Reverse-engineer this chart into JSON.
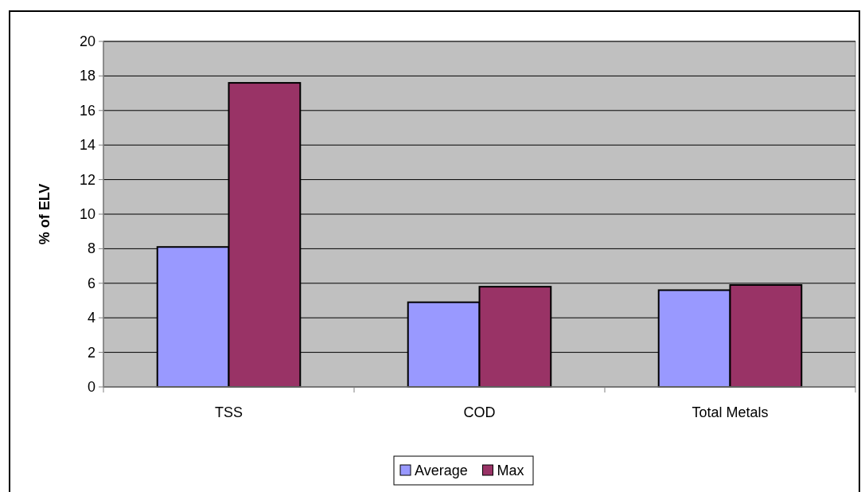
{
  "chart_data": {
    "type": "bar",
    "ylabel": "% of ELV",
    "categories": [
      "TSS",
      "COD",
      "Total Metals"
    ],
    "series": [
      {
        "name": "Average",
        "color": "#9999ff",
        "values": [
          8.1,
          4.9,
          5.6
        ]
      },
      {
        "name": "Max",
        "color": "#993366",
        "values": [
          17.6,
          5.8,
          5.9
        ]
      }
    ],
    "ylim": [
      0,
      20
    ],
    "yticks": [
      0,
      2,
      4,
      6,
      8,
      10,
      12,
      14,
      16,
      18,
      20
    ],
    "grid": "y",
    "legend": "bottom"
  }
}
